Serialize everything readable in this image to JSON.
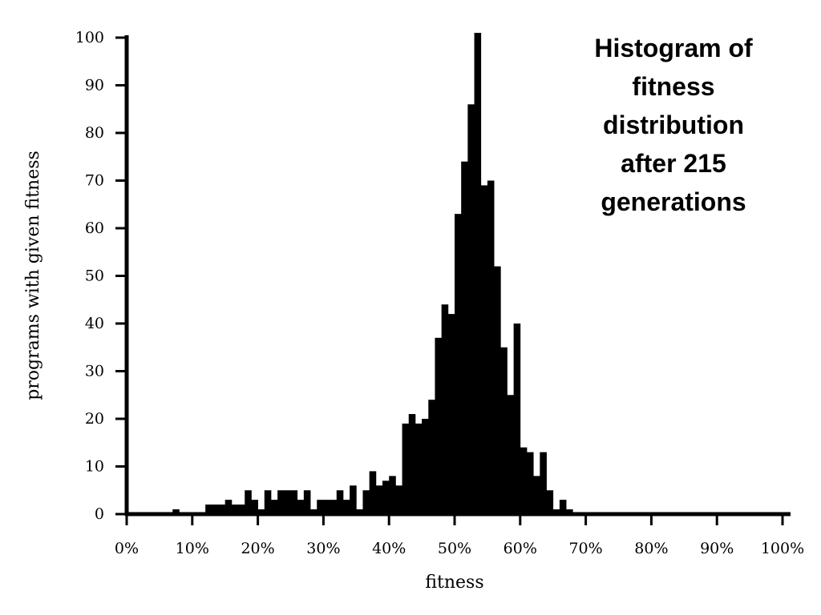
{
  "chart_data": {
    "type": "bar",
    "title": [
      "Histogram of",
      "fitness",
      "distribution",
      "after 215",
      "generations"
    ],
    "xlabel": "fitness",
    "ylabel": "programs with given fitness",
    "xlim": [
      0,
      100
    ],
    "ylim": [
      0,
      100
    ],
    "x_unit": "%",
    "bin_width": 1,
    "x_ticks": [
      "0%",
      "10%",
      "20%",
      "30%",
      "40%",
      "50%",
      "60%",
      "70%",
      "80%",
      "90%",
      "100%"
    ],
    "y_ticks": [
      "0",
      "10",
      "20",
      "30",
      "40",
      "50",
      "60",
      "70",
      "80",
      "90",
      "100"
    ],
    "grid": false,
    "color": "#000000",
    "bins": [
      {
        "x": 6,
        "y": 0
      },
      {
        "x": 7,
        "y": 1
      },
      {
        "x": 8,
        "y": 0
      },
      {
        "x": 9,
        "y": 0
      },
      {
        "x": 10,
        "y": 0
      },
      {
        "x": 11,
        "y": 0
      },
      {
        "x": 12,
        "y": 2
      },
      {
        "x": 13,
        "y": 2
      },
      {
        "x": 14,
        "y": 2
      },
      {
        "x": 15,
        "y": 3
      },
      {
        "x": 16,
        "y": 2
      },
      {
        "x": 17,
        "y": 2
      },
      {
        "x": 18,
        "y": 5
      },
      {
        "x": 19,
        "y": 3
      },
      {
        "x": 20,
        "y": 1
      },
      {
        "x": 21,
        "y": 5
      },
      {
        "x": 22,
        "y": 3
      },
      {
        "x": 23,
        "y": 5
      },
      {
        "x": 24,
        "y": 5
      },
      {
        "x": 25,
        "y": 5
      },
      {
        "x": 26,
        "y": 3
      },
      {
        "x": 27,
        "y": 5
      },
      {
        "x": 28,
        "y": 1
      },
      {
        "x": 29,
        "y": 3
      },
      {
        "x": 30,
        "y": 3
      },
      {
        "x": 31,
        "y": 3
      },
      {
        "x": 32,
        "y": 5
      },
      {
        "x": 33,
        "y": 3
      },
      {
        "x": 34,
        "y": 6
      },
      {
        "x": 35,
        "y": 1
      },
      {
        "x": 36,
        "y": 5
      },
      {
        "x": 37,
        "y": 9
      },
      {
        "x": 38,
        "y": 6
      },
      {
        "x": 39,
        "y": 7
      },
      {
        "x": 40,
        "y": 8
      },
      {
        "x": 41,
        "y": 6
      },
      {
        "x": 42,
        "y": 19
      },
      {
        "x": 43,
        "y": 21
      },
      {
        "x": 44,
        "y": 19
      },
      {
        "x": 45,
        "y": 20
      },
      {
        "x": 46,
        "y": 24
      },
      {
        "x": 47,
        "y": 37
      },
      {
        "x": 48,
        "y": 44
      },
      {
        "x": 49,
        "y": 42
      },
      {
        "x": 50,
        "y": 63
      },
      {
        "x": 51,
        "y": 74
      },
      {
        "x": 52,
        "y": 86
      },
      {
        "x": 53,
        "y": 101
      },
      {
        "x": 54,
        "y": 69
      },
      {
        "x": 55,
        "y": 70
      },
      {
        "x": 56,
        "y": 52
      },
      {
        "x": 57,
        "y": 35
      },
      {
        "x": 58,
        "y": 25
      },
      {
        "x": 59,
        "y": 40
      },
      {
        "x": 60,
        "y": 14
      },
      {
        "x": 61,
        "y": 13
      },
      {
        "x": 62,
        "y": 8
      },
      {
        "x": 63,
        "y": 13
      },
      {
        "x": 64,
        "y": 5
      },
      {
        "x": 65,
        "y": 1
      },
      {
        "x": 66,
        "y": 3
      },
      {
        "x": 67,
        "y": 1
      }
    ]
  }
}
